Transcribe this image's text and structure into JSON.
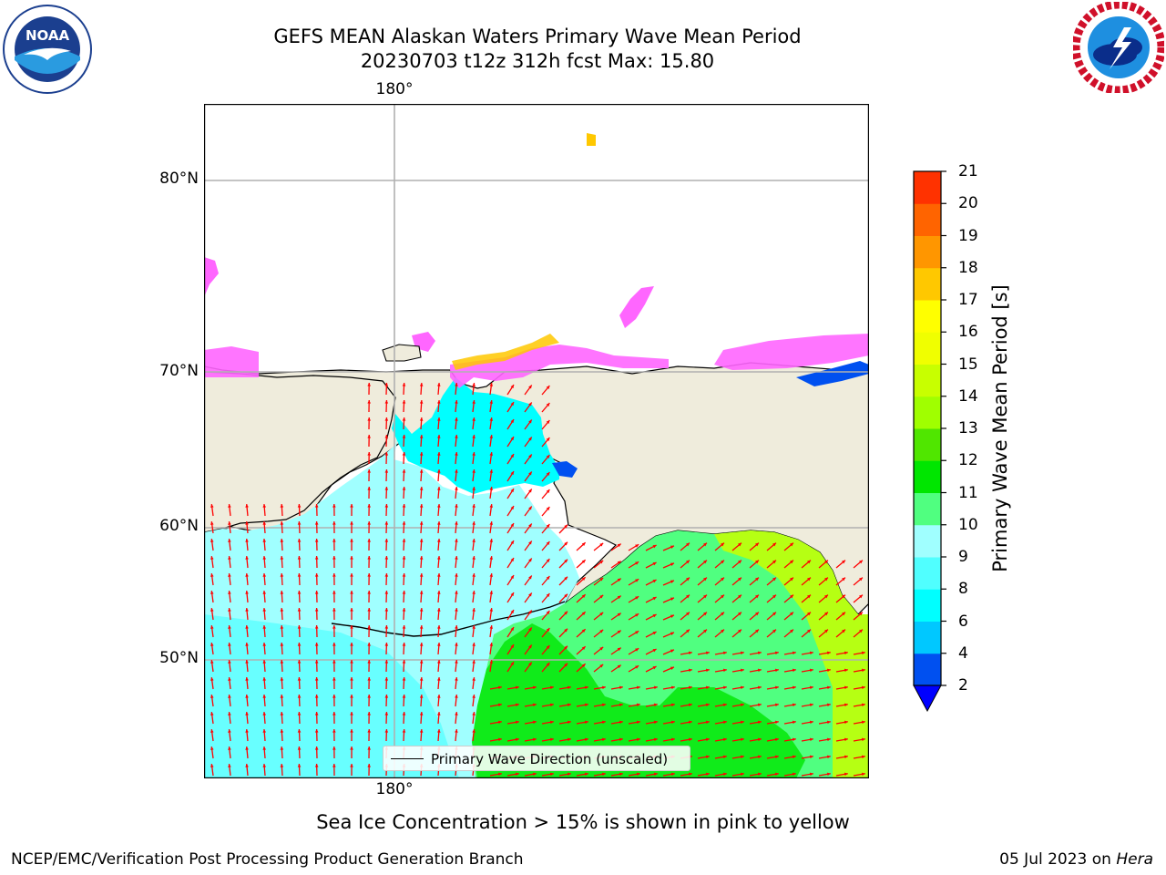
{
  "header": {
    "title_line1": "GEFS MEAN Alaskan Waters Primary Wave Mean Period",
    "title_line2": "20230703 t12z 312h fcst   Max: 15.80"
  },
  "logos": {
    "left": "NOAA",
    "right": "NATIONAL WEATHER SERVICE"
  },
  "map": {
    "lon_label_top": "180°",
    "lon_label_bottom": "180°",
    "lat_labels": [
      "80°N",
      "70°N",
      "60°N",
      "50°N"
    ],
    "legend_label": "Primary Wave Direction (unscaled)",
    "arrow_color": "#ff0000",
    "land_color": "#efecdc"
  },
  "colorbar": {
    "label": "Primary Wave Mean Period [s]",
    "ticks": [
      "2",
      "4",
      "6",
      "8",
      "9",
      "10",
      "11",
      "12",
      "13",
      "14",
      "15",
      "16",
      "17",
      "18",
      "19",
      "20",
      "21"
    ],
    "colors": [
      "#0050f0",
      "#00c8ff",
      "#00ffff",
      "#50ffff",
      "#a0ffff",
      "#50ff80",
      "#00e600",
      "#50e600",
      "#a0ff00",
      "#c8ff00",
      "#f0ff00",
      "#ffff00",
      "#ffc800",
      "#ff9600",
      "#ff6400",
      "#ff3200"
    ],
    "extend_color": "#0000ff"
  },
  "notes": {
    "sea_ice": "Sea Ice Concentration > 15% is shown in pink to yellow",
    "footer_left": "NCEP/EMC/Verification Post Processing Product Generation Branch",
    "footer_date": "05 Jul 2023 on",
    "footer_host": "Hera"
  }
}
